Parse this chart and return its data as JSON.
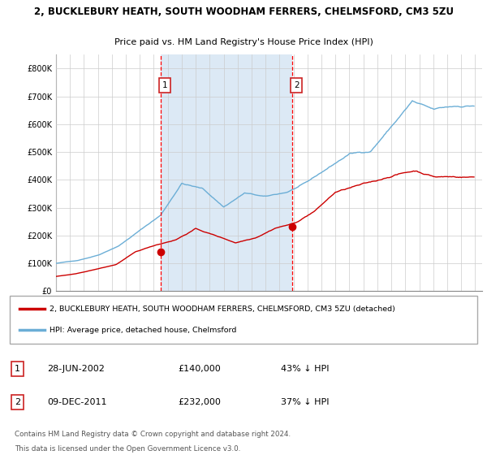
{
  "title1": "2, BUCKLEBURY HEATH, SOUTH WOODHAM FERRERS, CHELMSFORD, CM3 5ZU",
  "title2": "Price paid vs. HM Land Registry's House Price Index (HPI)",
  "background_color": "#ffffff",
  "plot_bg_color": "#ffffff",
  "legend_line1": "2, BUCKLEBURY HEATH, SOUTH WOODHAM FERRERS, CHELMSFORD, CM3 5ZU (detached)",
  "legend_line2": "HPI: Average price, detached house, Chelmsford",
  "annotation1": {
    "label": "1",
    "x_date": 2002.5,
    "price": 140000,
    "text": "28-JUN-2002",
    "amount": "£140,000",
    "pct": "43% ↓ HPI"
  },
  "annotation2": {
    "label": "2",
    "x_date": 2011.92,
    "price": 232000,
    "text": "09-DEC-2011",
    "amount": "£232,000",
    "pct": "37% ↓ HPI"
  },
  "footer1": "Contains HM Land Registry data © Crown copyright and database right 2024.",
  "footer2": "This data is licensed under the Open Government Licence v3.0.",
  "hpi_color": "#6baed6",
  "price_color": "#cc0000",
  "shade_color": "#dce9f5",
  "ylim": [
    0,
    850000
  ],
  "yticks": [
    0,
    100000,
    200000,
    300000,
    400000,
    500000,
    600000,
    700000,
    800000
  ],
  "ytick_labels": [
    "£0",
    "£100K",
    "£200K",
    "£300K",
    "£400K",
    "£500K",
    "£600K",
    "£700K",
    "£800K"
  ],
  "xlim": [
    1995,
    2025.5
  ],
  "xticks": [
    1995,
    1996,
    1997,
    1998,
    1999,
    2000,
    2001,
    2002,
    2003,
    2004,
    2005,
    2006,
    2007,
    2008,
    2009,
    2010,
    2011,
    2012,
    2013,
    2014,
    2015,
    2016,
    2017,
    2018,
    2019,
    2020,
    2021,
    2022,
    2023,
    2024,
    2025
  ]
}
